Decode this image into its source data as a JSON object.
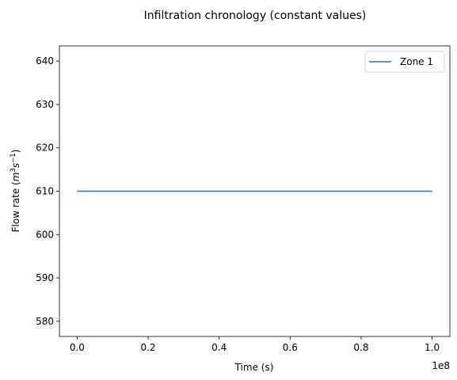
{
  "chart_data": {
    "type": "line",
    "title": "Infiltration chronology (constant values)",
    "xlabel": "Time (s)",
    "ylabel_prefix": "Flow rate (",
    "ylabel_units": {
      "m": "m",
      "m_exp": "3",
      "s": "s",
      "s_exp": "−1"
    },
    "ylabel_suffix": ")",
    "x_offset_label": "1e8",
    "x_scale": 100000000,
    "xlim": [
      -0.05,
      1.05
    ],
    "ylim": [
      576.5,
      643.5
    ],
    "x_ticks": [
      0.0,
      0.2,
      0.4,
      0.6,
      0.8,
      1.0
    ],
    "x_tick_labels": [
      "0.0",
      "0.2",
      "0.4",
      "0.6",
      "0.8",
      "1.0"
    ],
    "y_ticks": [
      580,
      590,
      600,
      610,
      620,
      630,
      640
    ],
    "y_tick_labels": [
      "580",
      "590",
      "600",
      "610",
      "620",
      "630",
      "640"
    ],
    "grid": false,
    "legend_position": "top-right",
    "series": [
      {
        "name": "Zone 1",
        "color": "#1f77b4",
        "x": [
          0.0,
          1.0
        ],
        "y": [
          610,
          610
        ]
      }
    ]
  }
}
